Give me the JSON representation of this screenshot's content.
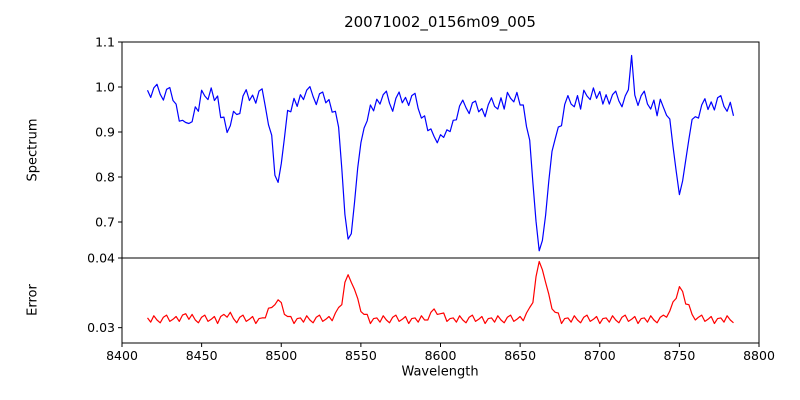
{
  "chart_data": {
    "type": "line",
    "title": "20071002_0156m09_005",
    "xlabel": "Wavelength",
    "xlim": [
      8400,
      8800
    ],
    "xticks": [
      8400,
      8450,
      8500,
      8550,
      8600,
      8650,
      8700,
      8750,
      8800
    ],
    "xtick_labels": [
      "8400",
      "8450",
      "8500",
      "8550",
      "8600",
      "8650",
      "8700",
      "8750",
      "8800"
    ],
    "grid": false,
    "legend": "none",
    "background_color": "#ffffff",
    "spine_color": "#000000",
    "x": [
      8416,
      8418,
      8420,
      8422,
      8424,
      8426,
      8428,
      8430,
      8432,
      8434,
      8436,
      8438,
      8440,
      8442,
      8444,
      8446,
      8448,
      8450,
      8452,
      8454,
      8456,
      8458,
      8460,
      8462,
      8464,
      8466,
      8468,
      8470,
      8472,
      8474,
      8476,
      8478,
      8480,
      8482,
      8484,
      8486,
      8488,
      8490,
      8492,
      8494,
      8496,
      8498,
      8500,
      8502,
      8504,
      8506,
      8508,
      8510,
      8512,
      8514,
      8516,
      8518,
      8520,
      8522,
      8524,
      8526,
      8528,
      8530,
      8532,
      8534,
      8536,
      8538,
      8540,
      8542,
      8544,
      8546,
      8548,
      8550,
      8552,
      8554,
      8556,
      8558,
      8560,
      8562,
      8564,
      8566,
      8568,
      8570,
      8572,
      8574,
      8576,
      8578,
      8580,
      8582,
      8584,
      8586,
      8588,
      8590,
      8592,
      8594,
      8596,
      8598,
      8600,
      8602,
      8604,
      8606,
      8608,
      8610,
      8612,
      8614,
      8616,
      8618,
      8620,
      8622,
      8624,
      8626,
      8628,
      8630,
      8632,
      8634,
      8636,
      8638,
      8640,
      8642,
      8644,
      8646,
      8648,
      8650,
      8652,
      8654,
      8656,
      8658,
      8660,
      8662,
      8664,
      8666,
      8668,
      8670,
      8672,
      8674,
      8676,
      8678,
      8680,
      8682,
      8684,
      8686,
      8688,
      8690,
      8692,
      8694,
      8696,
      8698,
      8700,
      8702,
      8704,
      8706,
      8708,
      8710,
      8712,
      8714,
      8716,
      8718,
      8720,
      8722,
      8724,
      8726,
      8728,
      8730,
      8732,
      8734,
      8736,
      8738,
      8740,
      8742,
      8744,
      8746,
      8748,
      8750,
      8752,
      8754,
      8756,
      8758,
      8760,
      8762,
      8764,
      8766,
      8768,
      8770,
      8772,
      8774,
      8776,
      8778,
      8780,
      8782,
      8784
    ],
    "panels": [
      {
        "name": "spectrum",
        "ylabel": "Spectrum",
        "color": "#0000ff",
        "ylim": [
          0.62,
          1.1
        ],
        "yticks": [
          1.1,
          1.0,
          0.9,
          0.8,
          0.7
        ],
        "ytick_labels": [
          "1.1",
          "1.0",
          "0.9",
          "0.8",
          "0.7"
        ],
        "absorption_lines": [
          {
            "wavelength": 8440,
            "depth_to": 0.92
          },
          {
            "wavelength": 8467,
            "depth_to": 0.9
          },
          {
            "wavelength": 8498,
            "depth_to": 0.79
          },
          {
            "wavelength": 8542,
            "depth_to": 0.66
          },
          {
            "wavelength": 8598,
            "depth_to": 0.88
          },
          {
            "wavelength": 8662,
            "depth_to": 0.64
          },
          {
            "wavelength": 8750,
            "depth_to": 0.76
          }
        ],
        "y": [
          0.993,
          0.977,
          0.998,
          1.006,
          0.984,
          0.971,
          0.995,
          0.999,
          0.97,
          0.962,
          0.924,
          0.926,
          0.921,
          0.919,
          0.923,
          0.956,
          0.946,
          0.993,
          0.98,
          0.972,
          0.998,
          0.97,
          0.98,
          0.932,
          0.933,
          0.899,
          0.914,
          0.946,
          0.939,
          0.941,
          0.98,
          0.994,
          0.97,
          0.982,
          0.964,
          0.991,
          0.996,
          0.957,
          0.916,
          0.893,
          0.804,
          0.788,
          0.83,
          0.886,
          0.948,
          0.945,
          0.975,
          0.957,
          0.983,
          0.972,
          0.993,
          1.001,
          0.979,
          0.961,
          0.985,
          0.989,
          0.965,
          0.972,
          0.944,
          0.946,
          0.911,
          0.819,
          0.717,
          0.662,
          0.674,
          0.743,
          0.82,
          0.876,
          0.909,
          0.925,
          0.96,
          0.947,
          0.973,
          0.962,
          0.983,
          0.991,
          0.964,
          0.946,
          0.975,
          0.989,
          0.965,
          0.977,
          0.959,
          0.981,
          0.986,
          0.952,
          0.931,
          0.936,
          0.903,
          0.907,
          0.89,
          0.876,
          0.894,
          0.888,
          0.905,
          0.901,
          0.926,
          0.927,
          0.958,
          0.971,
          0.954,
          0.941,
          0.965,
          0.969,
          0.945,
          0.952,
          0.934,
          0.961,
          0.976,
          0.957,
          0.951,
          0.976,
          0.951,
          0.988,
          0.975,
          0.967,
          0.988,
          0.96,
          0.96,
          0.912,
          0.882,
          0.787,
          0.702,
          0.636,
          0.659,
          0.715,
          0.791,
          0.857,
          0.885,
          0.911,
          0.914,
          0.961,
          0.981,
          0.962,
          0.956,
          0.981,
          0.951,
          0.993,
          0.98,
          0.972,
          0.998,
          0.975,
          0.99,
          0.962,
          0.983,
          0.962,
          0.983,
          0.991,
          0.969,
          0.956,
          0.98,
          0.994,
          1.07,
          0.982,
          0.959,
          0.981,
          0.991,
          0.962,
          0.951,
          0.971,
          0.936,
          0.973,
          0.955,
          0.937,
          0.929,
          0.868,
          0.813,
          0.761,
          0.791,
          0.837,
          0.884,
          0.928,
          0.934,
          0.931,
          0.96,
          0.974,
          0.95,
          0.967,
          0.949,
          0.976,
          0.981,
          0.957,
          0.946,
          0.966,
          0.936
        ]
      },
      {
        "name": "error",
        "ylabel": "Error",
        "color": "#ff0000",
        "ylim": [
          0.0278,
          0.04
        ],
        "yticks": [
          0.04,
          0.03
        ],
        "ytick_labels": [
          "0.04",
          "0.03"
        ],
        "error_peaks": [
          {
            "wavelength": 8498,
            "value": 0.034
          },
          {
            "wavelength": 8542,
            "value": 0.038
          },
          {
            "wavelength": 8662,
            "value": 0.0395
          },
          {
            "wavelength": 8750,
            "value": 0.036
          }
        ],
        "y": [
          0.0314,
          0.0308,
          0.0317,
          0.0311,
          0.0307,
          0.0315,
          0.0318,
          0.0309,
          0.0312,
          0.0316,
          0.0309,
          0.0318,
          0.032,
          0.0312,
          0.0319,
          0.0311,
          0.0307,
          0.0315,
          0.0318,
          0.0309,
          0.0312,
          0.0316,
          0.0306,
          0.0316,
          0.0319,
          0.0315,
          0.0322,
          0.0313,
          0.0307,
          0.0315,
          0.0318,
          0.0309,
          0.0312,
          0.0316,
          0.0306,
          0.0313,
          0.0314,
          0.0314,
          0.0328,
          0.0329,
          0.0333,
          0.034,
          0.0336,
          0.0319,
          0.0316,
          0.0316,
          0.0306,
          0.0313,
          0.0314,
          0.0308,
          0.0317,
          0.0311,
          0.0307,
          0.0315,
          0.0318,
          0.0309,
          0.0312,
          0.0316,
          0.031,
          0.0321,
          0.0329,
          0.0333,
          0.0365,
          0.0376,
          0.0365,
          0.0355,
          0.0342,
          0.0323,
          0.0319,
          0.0319,
          0.0306,
          0.0313,
          0.0314,
          0.0308,
          0.0317,
          0.0311,
          0.0307,
          0.0315,
          0.0318,
          0.0309,
          0.0312,
          0.0316,
          0.0306,
          0.0313,
          0.0314,
          0.0308,
          0.0317,
          0.0311,
          0.0311,
          0.0322,
          0.0327,
          0.0319,
          0.032,
          0.0321,
          0.0309,
          0.0313,
          0.0314,
          0.0308,
          0.0317,
          0.0311,
          0.0307,
          0.0315,
          0.0318,
          0.0309,
          0.0312,
          0.0316,
          0.0306,
          0.0313,
          0.0314,
          0.0308,
          0.0317,
          0.0311,
          0.0307,
          0.0315,
          0.0318,
          0.0309,
          0.0312,
          0.0316,
          0.031,
          0.0321,
          0.0329,
          0.0336,
          0.0373,
          0.0395,
          0.0383,
          0.0365,
          0.0348,
          0.0327,
          0.0322,
          0.0321,
          0.0306,
          0.0313,
          0.0314,
          0.0308,
          0.0317,
          0.0311,
          0.0307,
          0.0315,
          0.0318,
          0.0309,
          0.0312,
          0.0316,
          0.0306,
          0.0313,
          0.0314,
          0.0308,
          0.0317,
          0.0311,
          0.0307,
          0.0315,
          0.0318,
          0.0309,
          0.0312,
          0.0316,
          0.0306,
          0.0313,
          0.0314,
          0.0308,
          0.0317,
          0.0311,
          0.0307,
          0.0315,
          0.0318,
          0.0315,
          0.0324,
          0.0337,
          0.0342,
          0.0359,
          0.0352,
          0.0334,
          0.0333,
          0.0319,
          0.0311,
          0.0315,
          0.0318,
          0.0309,
          0.0312,
          0.0316,
          0.0306,
          0.0313,
          0.0314,
          0.0308,
          0.0317,
          0.0311,
          0.0307
        ]
      }
    ]
  }
}
